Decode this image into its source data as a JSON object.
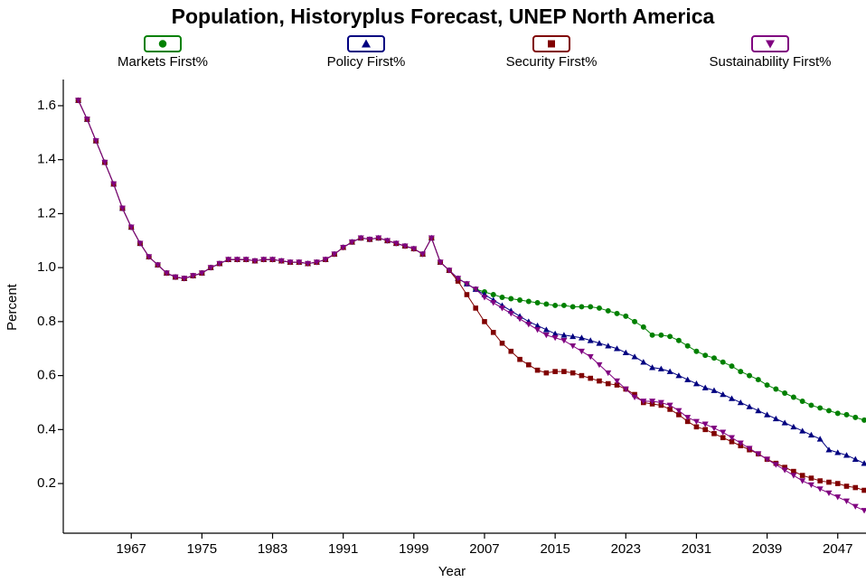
{
  "chart_data": {
    "type": "line",
    "title": "Population, Historyplus Forecast, UNEP North America",
    "x_label": "Year",
    "y_label": "Percent",
    "xlim": [
      1959.3,
      2050.2
    ],
    "ylim": [
      0.016,
      1.697
    ],
    "xticks": [
      1967,
      1975,
      1983,
      1991,
      1999,
      2007,
      2015,
      2023,
      2031,
      2039,
      2047
    ],
    "yticks": [
      0.2,
      0.4,
      0.6,
      0.8,
      {
        "value": 1,
        "label": "1.0"
      },
      1.2,
      1.4,
      1.6
    ],
    "x": [
      1961,
      1962,
      1963,
      1964,
      1965,
      1966,
      1967,
      1968,
      1969,
      1970,
      1971,
      1972,
      1973,
      1974,
      1975,
      1976,
      1977,
      1978,
      1979,
      1980,
      1981,
      1982,
      1983,
      1984,
      1985,
      1986,
      1987,
      1988,
      1989,
      1990,
      1991,
      1992,
      1993,
      1994,
      1995,
      1996,
      1997,
      1998,
      1999,
      2000,
      2001,
      2002,
      2003,
      2004,
      2005,
      2006,
      2007,
      2008,
      2009,
      2010,
      2011,
      2012,
      2013,
      2014,
      2015,
      2016,
      2017,
      2018,
      2019,
      2020,
      2021,
      2022,
      2023,
      2024,
      2025,
      2026,
      2027,
      2028,
      2029,
      2030,
      2031,
      2032,
      2033,
      2034,
      2035,
      2036,
      2037,
      2038,
      2039,
      2040,
      2041,
      2042,
      2043,
      2044,
      2045,
      2046,
      2047,
      2048,
      2049,
      2050
    ],
    "series": [
      {
        "name": "Markets First%",
        "color": "#008000",
        "marker": "circle",
        "values": [
          1.62,
          1.55,
          1.47,
          1.39,
          1.31,
          1.22,
          1.15,
          1.09,
          1.04,
          1.01,
          0.98,
          0.965,
          0.96,
          0.97,
          0.98,
          1.0,
          1.015,
          1.03,
          1.03,
          1.03,
          1.025,
          1.03,
          1.03,
          1.025,
          1.02,
          1.02,
          1.015,
          1.02,
          1.03,
          1.05,
          1.075,
          1.095,
          1.11,
          1.105,
          1.11,
          1.1,
          1.09,
          1.08,
          1.07,
          1.05,
          1.11,
          1.02,
          0.99,
          0.96,
          0.94,
          0.92,
          0.91,
          0.9,
          0.89,
          0.885,
          0.88,
          0.875,
          0.87,
          0.865,
          0.86,
          0.86,
          0.855,
          0.855,
          0.855,
          0.85,
          0.84,
          0.83,
          0.82,
          0.8,
          0.78,
          0.75,
          0.75,
          0.745,
          0.73,
          0.71,
          0.69,
          0.675,
          0.665,
          0.65,
          0.635,
          0.615,
          0.6,
          0.585,
          0.565,
          0.55,
          0.535,
          0.52,
          0.505,
          0.49,
          0.48,
          0.47,
          0.46,
          0.455,
          0.445,
          0.435
        ]
      },
      {
        "name": "Policy First%",
        "color": "#000080",
        "marker": "triangle-up",
        "values": [
          1.62,
          1.55,
          1.47,
          1.39,
          1.31,
          1.22,
          1.15,
          1.09,
          1.04,
          1.01,
          0.98,
          0.965,
          0.96,
          0.97,
          0.98,
          1.0,
          1.015,
          1.03,
          1.03,
          1.03,
          1.025,
          1.03,
          1.03,
          1.025,
          1.02,
          1.02,
          1.015,
          1.02,
          1.03,
          1.05,
          1.075,
          1.095,
          1.11,
          1.105,
          1.11,
          1.1,
          1.09,
          1.08,
          1.07,
          1.05,
          1.11,
          1.02,
          0.99,
          0.96,
          0.94,
          0.92,
          0.9,
          0.88,
          0.86,
          0.84,
          0.82,
          0.8,
          0.785,
          0.77,
          0.755,
          0.75,
          0.745,
          0.74,
          0.73,
          0.72,
          0.71,
          0.7,
          0.685,
          0.67,
          0.65,
          0.63,
          0.625,
          0.615,
          0.6,
          0.585,
          0.57,
          0.555,
          0.545,
          0.53,
          0.515,
          0.5,
          0.485,
          0.47,
          0.455,
          0.44,
          0.425,
          0.41,
          0.395,
          0.38,
          0.365,
          0.325,
          0.315,
          0.305,
          0.29,
          0.275
        ]
      },
      {
        "name": "Security First%",
        "color": "#800000",
        "marker": "square",
        "values": [
          1.62,
          1.55,
          1.47,
          1.39,
          1.31,
          1.22,
          1.15,
          1.09,
          1.04,
          1.01,
          0.98,
          0.965,
          0.96,
          0.97,
          0.98,
          1.0,
          1.015,
          1.03,
          1.03,
          1.03,
          1.025,
          1.03,
          1.03,
          1.025,
          1.02,
          1.02,
          1.015,
          1.02,
          1.03,
          1.05,
          1.075,
          1.095,
          1.11,
          1.105,
          1.11,
          1.1,
          1.09,
          1.08,
          1.07,
          1.05,
          1.11,
          1.02,
          0.99,
          0.95,
          0.9,
          0.85,
          0.8,
          0.76,
          0.72,
          0.69,
          0.66,
          0.64,
          0.62,
          0.61,
          0.615,
          0.615,
          0.61,
          0.6,
          0.59,
          0.58,
          0.57,
          0.565,
          0.55,
          0.53,
          0.5,
          0.495,
          0.49,
          0.475,
          0.455,
          0.43,
          0.41,
          0.4,
          0.385,
          0.37,
          0.355,
          0.34,
          0.325,
          0.31,
          0.29,
          0.275,
          0.26,
          0.245,
          0.23,
          0.22,
          0.21,
          0.205,
          0.2,
          0.19,
          0.185,
          0.175
        ]
      },
      {
        "name": "Sustainability First%",
        "color": "#800080",
        "marker": "triangle-down",
        "values": [
          1.62,
          1.55,
          1.47,
          1.39,
          1.31,
          1.22,
          1.15,
          1.09,
          1.04,
          1.01,
          0.98,
          0.965,
          0.96,
          0.97,
          0.98,
          1.0,
          1.015,
          1.03,
          1.03,
          1.03,
          1.025,
          1.03,
          1.03,
          1.025,
          1.02,
          1.02,
          1.015,
          1.02,
          1.03,
          1.05,
          1.075,
          1.095,
          1.11,
          1.105,
          1.11,
          1.1,
          1.09,
          1.08,
          1.07,
          1.05,
          1.11,
          1.02,
          0.99,
          0.96,
          0.94,
          0.92,
          0.89,
          0.87,
          0.85,
          0.83,
          0.81,
          0.79,
          0.77,
          0.75,
          0.74,
          0.73,
          0.71,
          0.69,
          0.67,
          0.64,
          0.61,
          0.58,
          0.55,
          0.52,
          0.505,
          0.505,
          0.5,
          0.49,
          0.47,
          0.445,
          0.43,
          0.42,
          0.405,
          0.39,
          0.37,
          0.35,
          0.33,
          0.31,
          0.29,
          0.27,
          0.25,
          0.23,
          0.21,
          0.195,
          0.18,
          0.165,
          0.15,
          0.135,
          0.115,
          0.1
        ]
      }
    ]
  }
}
